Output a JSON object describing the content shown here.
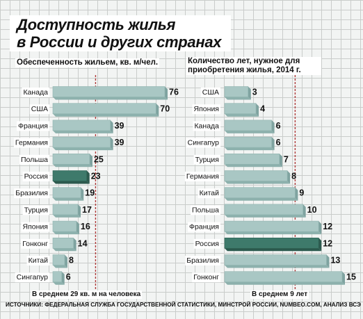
{
  "title_line1": "Доступность жилья",
  "title_line2": "в России и других странах",
  "source": "ИСТОЧНИКИ: ФЕДЕРАЛЬНАЯ СЛУЖБА ГОСУДАРСТВЕННОЙ СТАТИСТИКИ, МИНСТРОЙ РОССИИ, NUMBEO.COM, АНАЛИЗ ВСЭ",
  "colors": {
    "bar": "#a9c7c4",
    "highlight": "#3e7a6b",
    "avg_line": "#b03a3a"
  },
  "chart_data": [
    {
      "type": "bar",
      "orientation": "horizontal",
      "subtitle": "Обеспеченность жильем, кв. м/чел.",
      "categories": [
        "Канада",
        "США",
        "Франция",
        "Германия",
        "Польша",
        "Россия",
        "Бразилия",
        "Турция",
        "Япония",
        "Гонконг",
        "Китай",
        "Сингапур"
      ],
      "values": [
        76,
        70,
        39,
        39,
        25,
        23,
        19,
        17,
        16,
        14,
        8,
        6
      ],
      "value_labels": [
        "76",
        "70",
        "39",
        "39",
        "25",
        "23",
        "19",
        "17",
        "16",
        "14",
        "8",
        "6"
      ],
      "highlight": "Россия",
      "average": 29,
      "average_label": "В среднем 29 кв. м на человека"
    },
    {
      "type": "bar",
      "orientation": "horizontal",
      "subtitle": "Количество лет, нужное для приобретения жилья, 2014 г.",
      "categories": [
        "США",
        "Япония",
        "Канада",
        "Сингапур",
        "Турция",
        "Германия",
        "Китай",
        "Польша",
        "Франция",
        "Россия",
        "Бразилия",
        "Гонконг"
      ],
      "values": [
        3,
        4,
        6,
        6,
        7,
        8,
        9,
        10,
        12,
        12,
        13,
        15
      ],
      "value_labels": [
        "3",
        "4",
        "6",
        "6",
        "7",
        "8",
        "9",
        "10",
        "12",
        "12",
        "13",
        "15"
      ],
      "highlight": "Россия",
      "average": 9,
      "average_label": "В среднем 9 лет"
    }
  ]
}
